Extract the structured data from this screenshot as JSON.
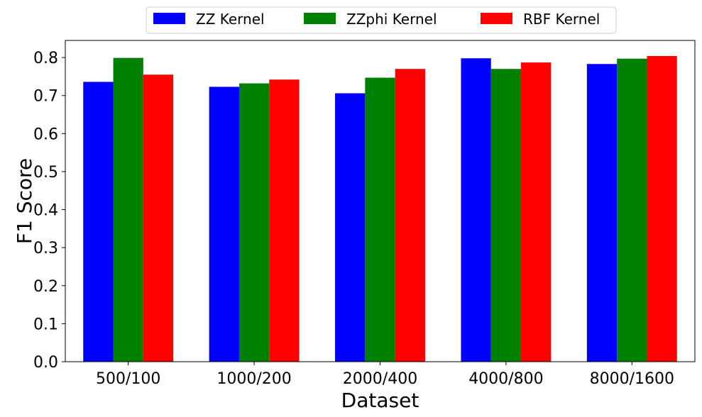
{
  "chart_data": {
    "type": "bar",
    "title": "",
    "xlabel": "Dataset",
    "ylabel": "F1 Score",
    "categories": [
      "500/100",
      "1000/200",
      "2000/400",
      "4000/800",
      "8000/1600"
    ],
    "series": [
      {
        "name": "ZZ Kernel",
        "color": "#0000ff",
        "values": [
          0.736,
          0.723,
          0.706,
          0.798,
          0.783
        ]
      },
      {
        "name": "ZZphi Kernel",
        "color": "#008000",
        "values": [
          0.799,
          0.732,
          0.747,
          0.77,
          0.797
        ]
      },
      {
        "name": "RBF Kernel",
        "color": "#ff0000",
        "values": [
          0.755,
          0.742,
          0.77,
          0.787,
          0.804
        ]
      }
    ],
    "ylim": [
      0,
      0.845
    ],
    "yticks": [
      "0.0",
      "0.1",
      "0.2",
      "0.3",
      "0.4",
      "0.5",
      "0.6",
      "0.7",
      "0.8"
    ],
    "legend_position": "top-center",
    "grid": false
  }
}
